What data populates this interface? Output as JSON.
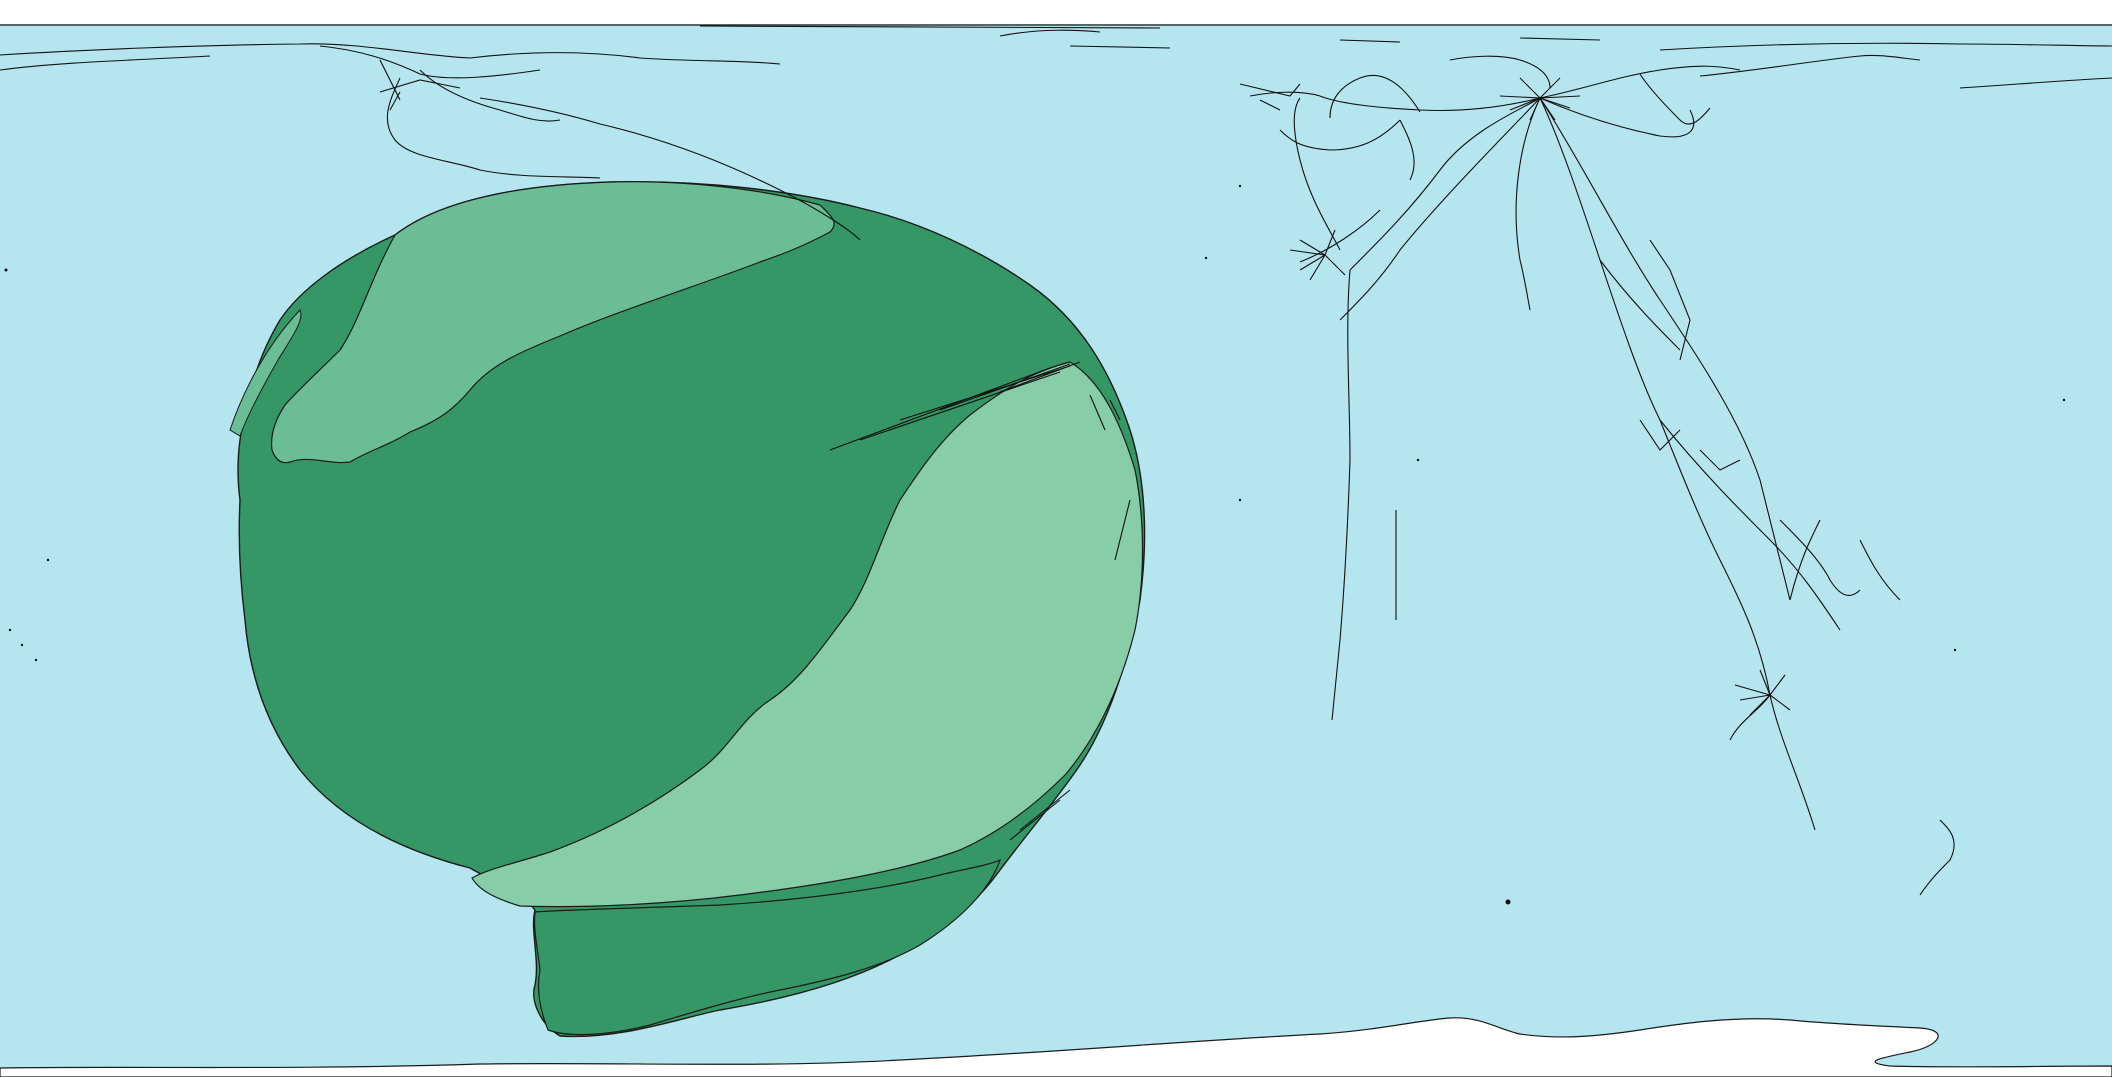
{
  "map": {
    "kind": "cartogram",
    "projection": "equirectangular",
    "colors": {
      "ocean": "#b5e5ee",
      "land_border": "#1a1a1a",
      "green_dark": "#359765",
      "green_mid": "#6bbd96",
      "green_light": "#86cda8",
      "antarctic_ice": "#ffffff",
      "page_background": "#ffffff",
      "network_line": "#111111"
    },
    "regions": [
      "large-green-cartogram-landmass",
      "northern-light-green-lobe",
      "southeastern-light-green-lobe",
      "southern-appendage",
      "antarctica-strip",
      "arctic-coastline-network",
      "eurasian-thread-network",
      "southeast-asian-thread-network"
    ]
  }
}
